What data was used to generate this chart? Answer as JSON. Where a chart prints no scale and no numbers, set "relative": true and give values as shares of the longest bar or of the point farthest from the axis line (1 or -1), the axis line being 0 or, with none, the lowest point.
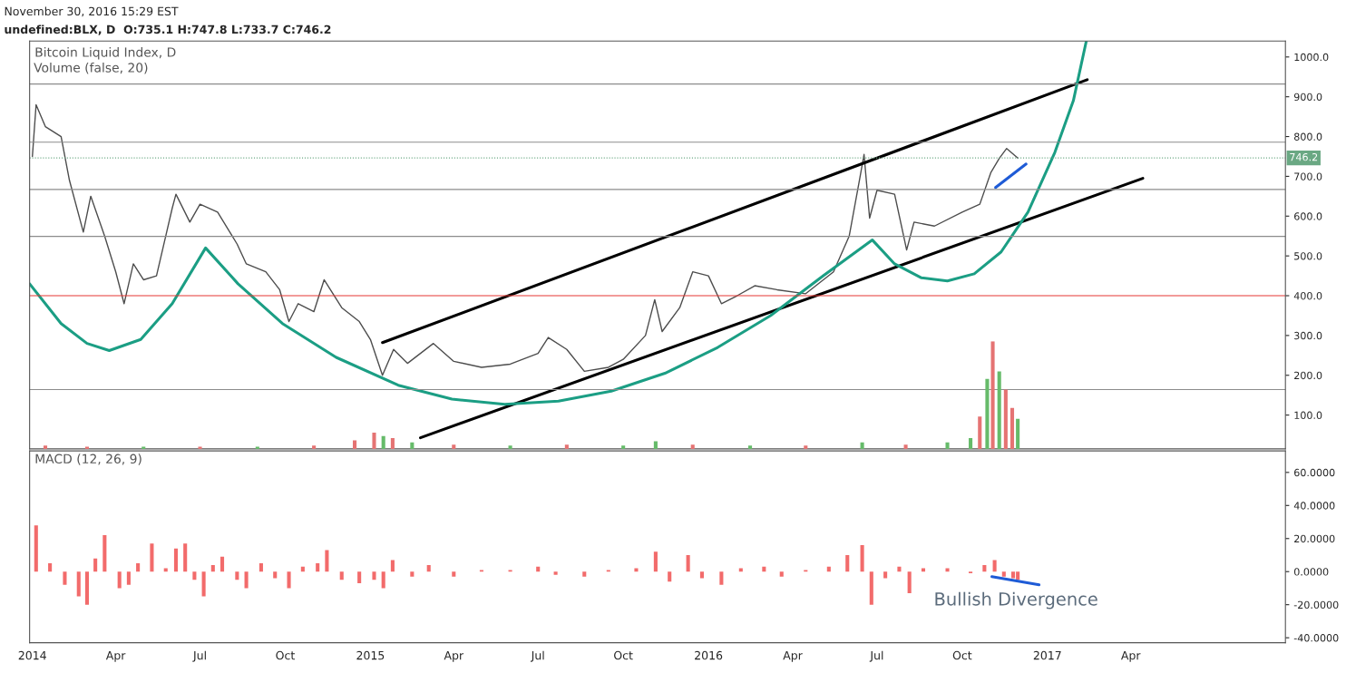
{
  "chart_data": [
    {
      "type": "line",
      "title": "Bitcoin Liquid Index, D",
      "annotations": [
        "November 30, 2016 15:29 EST",
        "undefined:BLX, D  O:735.1 H:747.8 L:733.7 C:746.2"
      ],
      "xlim": [
        "2013-12-29",
        "2017-09-15"
      ],
      "ylim": [
        15,
        1040
      ],
      "yticks": [
        {
          "value": 100,
          "label": "100.0"
        },
        {
          "value": 200,
          "label": "200.0"
        },
        {
          "value": 300,
          "label": "300.0"
        },
        {
          "value": 400,
          "label": "400.0"
        },
        {
          "value": 500,
          "label": "500.0"
        },
        {
          "value": 600,
          "label": "600.0"
        },
        {
          "value": 700,
          "label": "700.0"
        },
        {
          "value": 800,
          "label": "800.0"
        },
        {
          "value": 900,
          "label": "900.0"
        },
        {
          "value": 1000,
          "label": "1000.0"
        }
      ],
      "tick_labels": "y",
      "grid": false,
      "ref_lines": [
        {
          "axis": "y",
          "value": 932,
          "label": null,
          "color": "#8c8c8c"
        },
        {
          "axis": "y",
          "value": 786,
          "label": null,
          "color": "#8c8c8c"
        },
        {
          "axis": "y",
          "value": 667,
          "label": null,
          "color": "#8c8c8c"
        },
        {
          "axis": "y",
          "value": 549,
          "label": null,
          "color": "#8c8c8c"
        },
        {
          "axis": "y",
          "value": 400,
          "label": null,
          "color": "#e53935"
        },
        {
          "axis": "y",
          "value": 164,
          "label": null,
          "color": "#8c8c8c"
        },
        {
          "axis": "y",
          "value": 746.2,
          "label": "746.2",
          "color": "#6aa883",
          "line_style": "dotted"
        }
      ],
      "series": [
        {
          "color": "#4d4d4d",
          "x": [
            "2014-01-01",
            "2014-01-05",
            "2014-01-15",
            "2014-02-01",
            "2014-02-10",
            "2014-02-25",
            "2014-03-05",
            "2014-03-20",
            "2014-04-01",
            "2014-04-10",
            "2014-04-20",
            "2014-05-01",
            "2014-05-15",
            "2014-06-01",
            "2014-06-05",
            "2014-06-20",
            "2014-07-01",
            "2014-07-20",
            "2014-08-10",
            "2014-08-20",
            "2014-09-10",
            "2014-09-25",
            "2014-10-05",
            "2014-10-15",
            "2014-11-01",
            "2014-11-12",
            "2014-12-01",
            "2014-12-20",
            "2015-01-01",
            "2015-01-14",
            "2015-01-26",
            "2015-02-10",
            "2015-03-10",
            "2015-04-01",
            "2015-05-01",
            "2015-06-01",
            "2015-07-01",
            "2015-07-12",
            "2015-08-01",
            "2015-08-20",
            "2015-09-15",
            "2015-10-01",
            "2015-10-25",
            "2015-11-04",
            "2015-11-12",
            "2015-12-01",
            "2015-12-15",
            "2016-01-01",
            "2016-01-15",
            "2016-02-01",
            "2016-02-20",
            "2016-03-15",
            "2016-04-15",
            "2016-05-15",
            "2016-06-01",
            "2016-06-12",
            "2016-06-17",
            "2016-06-23",
            "2016-07-01",
            "2016-07-20",
            "2016-08-02",
            "2016-08-10",
            "2016-09-01",
            "2016-10-01",
            "2016-10-20",
            "2016-11-01",
            "2016-11-10",
            "2016-11-18",
            "2016-11-30"
          ],
          "values": [
            750,
            880,
            825,
            800,
            690,
            560,
            650,
            550,
            460,
            380,
            480,
            440,
            450,
            620,
            655,
            585,
            630,
            610,
            530,
            480,
            460,
            415,
            335,
            380,
            360,
            440,
            370,
            335,
            290,
            200,
            265,
            230,
            280,
            235,
            220,
            228,
            255,
            295,
            265,
            210,
            220,
            240,
            300,
            390,
            310,
            370,
            460,
            450,
            380,
            400,
            425,
            415,
            405,
            460,
            550,
            690,
            755,
            595,
            665,
            655,
            515,
            585,
            575,
            610,
            630,
            710,
            745,
            770,
            746
          ]
        },
        {
          "color": "#000000",
          "x": [
            "2015-01-14",
            "2017-02-13"
          ],
          "values": [
            282,
            943
          ]
        },
        {
          "color": "#000000",
          "x": [
            "2015-02-24",
            "2017-04-14"
          ],
          "values": [
            43,
            695
          ]
        },
        {
          "color": "#1e5bd6",
          "x": [
            "2016-11-06",
            "2016-12-09"
          ],
          "values": [
            672,
            731
          ]
        },
        {
          "color": "#1b9e84",
          "x": [
            "2013-12-29",
            "2014-02-01",
            "2014-03-01",
            "2014-03-25",
            "2014-04-28",
            "2014-06-01",
            "2014-07-07",
            "2014-08-11",
            "2014-09-28",
            "2014-11-25",
            "2015-01-31",
            "2015-03-30",
            "2015-05-26",
            "2015-07-23",
            "2015-09-18",
            "2015-11-15",
            "2016-01-11",
            "2016-03-08",
            "2016-05-04",
            "2016-06-26",
            "2016-07-20",
            "2016-08-18",
            "2016-09-15",
            "2016-10-14",
            "2016-11-12",
            "2016-12-11",
            "2017-01-09",
            "2017-01-29",
            "2017-02-12"
          ],
          "values": [
            430,
            330,
            280,
            262,
            290,
            380,
            520,
            430,
            330,
            245,
            175,
            140,
            127,
            135,
            160,
            205,
            270,
            350,
            450,
            540,
            480,
            445,
            437,
            455,
            510,
            610,
            760,
            890,
            1040
          ]
        }
      ]
    },
    {
      "type": "bar",
      "title": "Volume (false, 20)",
      "relative": true,
      "xlim": [
        "2013-12-29",
        "2017-09-15"
      ],
      "x": [
        "2014-01-15",
        "2014-03-01",
        "2014-05-01",
        "2014-07-01",
        "2014-09-01",
        "2014-11-01",
        "2014-12-15",
        "2015-01-05",
        "2015-01-15",
        "2015-01-25",
        "2015-02-15",
        "2015-04-01",
        "2015-06-01",
        "2015-08-01",
        "2015-10-01",
        "2015-11-05",
        "2015-12-15",
        "2016-02-15",
        "2016-04-15",
        "2016-06-15",
        "2016-08-01",
        "2016-09-15",
        "2016-10-10",
        "2016-10-20",
        "2016-10-28",
        "2016-11-03",
        "2016-11-10",
        "2016-11-17",
        "2016-11-24",
        "2016-11-30"
      ],
      "values": [
        0.03,
        0.02,
        0.02,
        0.02,
        0.02,
        0.03,
        0.08,
        0.15,
        0.12,
        0.1,
        0.06,
        0.04,
        0.03,
        0.04,
        0.03,
        0.07,
        0.04,
        0.03,
        0.03,
        0.06,
        0.04,
        0.06,
        0.1,
        0.3,
        0.65,
        1.0,
        0.72,
        0.55,
        0.38,
        0.28
      ],
      "colors": [
        "#e57373",
        "#e57373",
        "#66bb6a",
        "#e57373",
        "#66bb6a",
        "#e57373",
        "#e57373",
        "#e57373",
        "#66bb6a",
        "#e57373",
        "#66bb6a",
        "#e57373",
        "#66bb6a",
        "#e57373",
        "#66bb6a",
        "#66bb6a",
        "#e57373",
        "#66bb6a",
        "#e57373",
        "#66bb6a",
        "#e57373",
        "#66bb6a",
        "#66bb6a",
        "#e57373",
        "#66bb6a",
        "#e57373",
        "#66bb6a",
        "#e57373",
        "#e57373",
        "#66bb6a"
      ]
    },
    {
      "type": "bar",
      "title": "MACD (12, 26, 9)",
      "annotations": [
        "Bullish Divergence"
      ],
      "xlim": [
        "2013-12-29",
        "2017-09-15"
      ],
      "xticks": [
        {
          "value": "2014-01-01",
          "label": "2014"
        },
        {
          "value": "2014-04-01",
          "label": "Apr"
        },
        {
          "value": "2014-07-01",
          "label": "Jul"
        },
        {
          "value": "2014-10-01",
          "label": "Oct"
        },
        {
          "value": "2015-01-01",
          "label": "2015"
        },
        {
          "value": "2015-04-01",
          "label": "Apr"
        },
        {
          "value": "2015-07-01",
          "label": "Jul"
        },
        {
          "value": "2015-10-01",
          "label": "Oct"
        },
        {
          "value": "2016-01-01",
          "label": "2016"
        },
        {
          "value": "2016-04-01",
          "label": "Apr"
        },
        {
          "value": "2016-07-01",
          "label": "Jul"
        },
        {
          "value": "2016-10-01",
          "label": "Oct"
        },
        {
          "value": "2017-01-01",
          "label": "2017"
        },
        {
          "value": "2017-04-01",
          "label": "Apr"
        }
      ],
      "ylim": [
        -43,
        73
      ],
      "yticks": [
        {
          "value": -40,
          "label": "-40.0000"
        },
        {
          "value": -20,
          "label": "-20.0000"
        },
        {
          "value": 0,
          "label": "0.0000"
        },
        {
          "value": 20,
          "label": "20.0000"
        },
        {
          "value": 40,
          "label": "40.0000"
        },
        {
          "value": 60,
          "label": "60.0000"
        }
      ],
      "grid": false,
      "series": [
        {
          "type": "bar",
          "color": "#f26b6b",
          "x": [
            "2014-01-05",
            "2014-01-20",
            "2014-02-05",
            "2014-02-20",
            "2014-03-01",
            "2014-03-10",
            "2014-03-20",
            "2014-04-05",
            "2014-04-15",
            "2014-04-25",
            "2014-05-10",
            "2014-05-25",
            "2014-06-05",
            "2014-06-15",
            "2014-06-25",
            "2014-07-05",
            "2014-07-15",
            "2014-07-25",
            "2014-08-10",
            "2014-08-20",
            "2014-09-05",
            "2014-09-20",
            "2014-10-05",
            "2014-10-20",
            "2014-11-05",
            "2014-11-15",
            "2014-12-01",
            "2014-12-20",
            "2015-01-05",
            "2015-01-15",
            "2015-01-25",
            "2015-02-15",
            "2015-03-05",
            "2015-04-01",
            "2015-05-01",
            "2015-06-01",
            "2015-07-01",
            "2015-07-20",
            "2015-08-20",
            "2015-09-15",
            "2015-10-15",
            "2015-11-05",
            "2015-11-20",
            "2015-12-10",
            "2015-12-25",
            "2016-01-15",
            "2016-02-05",
            "2016-03-01",
            "2016-03-20",
            "2016-04-15",
            "2016-05-10",
            "2016-05-30",
            "2016-06-15",
            "2016-06-25",
            "2016-07-10",
            "2016-07-25",
            "2016-08-05",
            "2016-08-20",
            "2016-09-15",
            "2016-10-10",
            "2016-10-25",
            "2016-11-05",
            "2016-11-15",
            "2016-11-25",
            "2016-11-30"
          ],
          "values": [
            28,
            5,
            -8,
            -15,
            -20,
            8,
            22,
            -10,
            -8,
            5,
            17,
            2,
            14,
            17,
            -5,
            -15,
            4,
            9,
            -5,
            -10,
            5,
            -4,
            -10,
            3,
            5,
            13,
            -5,
            -7,
            -5,
            -10,
            7,
            -3,
            4,
            -3,
            1,
            1,
            3,
            -2,
            -3,
            1,
            2,
            12,
            -6,
            10,
            -4,
            -8,
            2,
            3,
            -3,
            1,
            3,
            10,
            16,
            -20,
            -4,
            3,
            -13,
            2,
            2,
            -1,
            4,
            7,
            -3,
            -4,
            -5
          ]
        },
        {
          "type": "line",
          "color": "#1e5bd6",
          "x": [
            "2016-11-02",
            "2016-12-23"
          ],
          "values": [
            -3,
            -8
          ]
        }
      ]
    }
  ]
}
